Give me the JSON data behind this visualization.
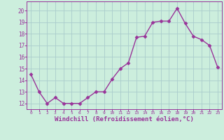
{
  "x": [
    0,
    1,
    2,
    3,
    4,
    5,
    6,
    7,
    8,
    9,
    10,
    11,
    12,
    13,
    14,
    15,
    16,
    17,
    18,
    19,
    20,
    21,
    22,
    23
  ],
  "y": [
    14.5,
    13.0,
    12.0,
    12.5,
    12.0,
    12.0,
    12.0,
    12.5,
    13.0,
    13.0,
    14.1,
    15.0,
    15.5,
    17.7,
    17.8,
    19.0,
    19.1,
    19.1,
    20.2,
    18.9,
    17.8,
    17.5,
    17.0,
    15.1
  ],
  "line_color": "#993399",
  "marker": "D",
  "markersize": 2.5,
  "linewidth": 1.0,
  "bg_color": "#cceedd",
  "grid_color": "#aacccc",
  "xlabel": "Windchill (Refroidissement éolien,°C)",
  "xlabel_fontsize": 6.5,
  "xlabel_color": "#993399",
  "tick_color": "#993399",
  "ylabel_ticks": [
    12,
    13,
    14,
    15,
    16,
    17,
    18,
    19,
    20
  ],
  "ylim": [
    11.5,
    20.8
  ],
  "xlim": [
    -0.5,
    23.5
  ]
}
